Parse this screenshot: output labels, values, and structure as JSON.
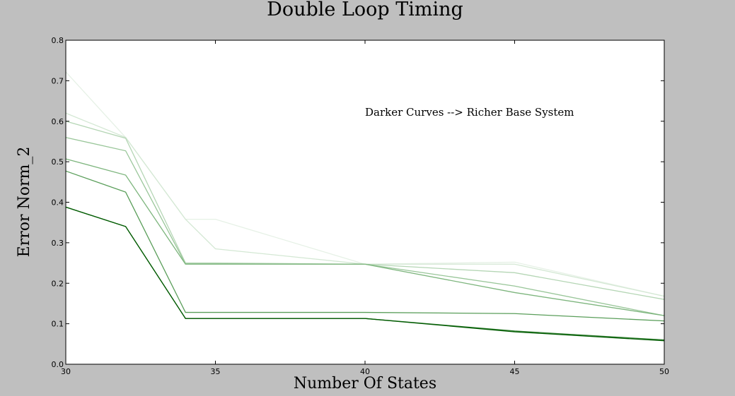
{
  "chart_data": {
    "type": "line",
    "title": "Double Loop Timing",
    "xlabel": "Number Of States",
    "ylabel": "Error Norm_2",
    "xlim": [
      30,
      50
    ],
    "ylim": [
      0,
      0.8
    ],
    "x_ticks": [
      "30",
      "35",
      "40",
      "45",
      "50"
    ],
    "y_ticks": [
      "0.0",
      "0.1",
      "0.2",
      "0.3",
      "0.4",
      "0.5",
      "0.6",
      "0.7",
      "0.8"
    ],
    "grid": false,
    "annotation": "Darker Curves --> Richer Base System",
    "x": [
      30,
      32,
      34,
      35,
      40,
      45,
      50
    ],
    "series": [
      {
        "color": "#e6f1e6",
        "values": [
          0.722,
          0.56,
          0.358,
          0.358,
          0.247,
          0.252,
          0.168
        ]
      },
      {
        "color": "#d4e8d4",
        "values": [
          0.62,
          0.56,
          0.358,
          0.285,
          0.247,
          0.247,
          0.168
        ]
      },
      {
        "color": "#b5d6b5",
        "values": [
          0.6,
          0.558,
          0.25,
          0.25,
          0.247,
          0.226,
          0.16
        ]
      },
      {
        "color": "#99c699",
        "values": [
          0.56,
          0.527,
          0.248,
          0.248,
          0.247,
          0.193,
          0.12
        ]
      },
      {
        "color": "#7db57d",
        "values": [
          0.507,
          0.467,
          0.247,
          0.247,
          0.247,
          0.177,
          0.12
        ]
      },
      {
        "color": "#5a9e5a",
        "values": [
          0.477,
          0.425,
          0.128,
          0.128,
          0.128,
          0.125,
          0.107
        ]
      },
      {
        "color": "#2e7d2e",
        "values": [
          0.388,
          0.34,
          0.113,
          0.113,
          0.113,
          0.082,
          0.06
        ]
      },
      {
        "color": "#005a00",
        "values": [
          0.388,
          0.34,
          0.113,
          0.113,
          0.113,
          0.08,
          0.058
        ]
      }
    ]
  }
}
